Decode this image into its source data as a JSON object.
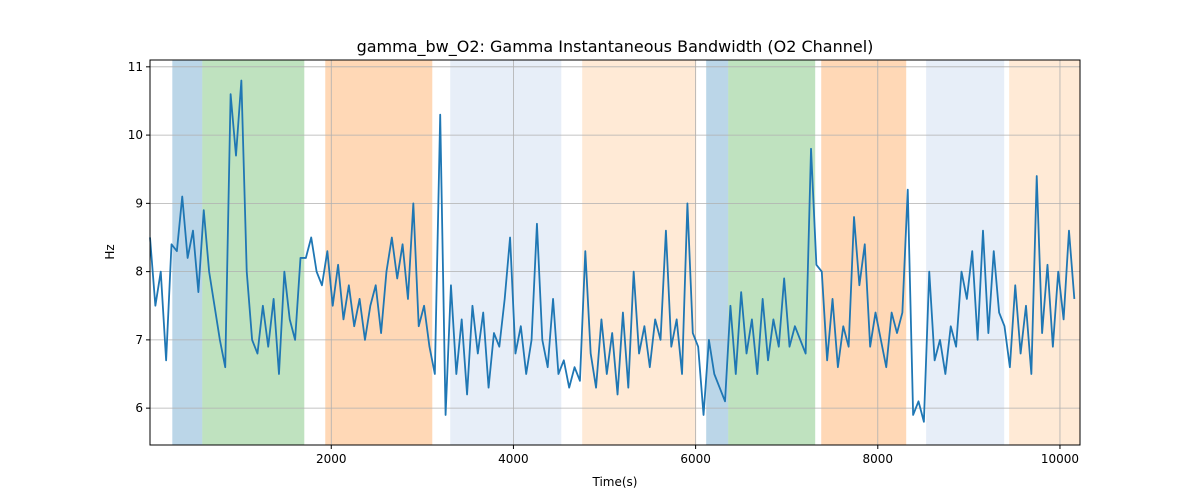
{
  "chart_data": {
    "type": "line",
    "title": "gamma_bw_O2: Gamma Instantaneous Bandwidth (O2 Channel)",
    "xlabel": "Time(s)",
    "ylabel": "Hz",
    "xlim": [
      10,
      10220
    ],
    "ylim": [
      5.46,
      11.1
    ],
    "xticks": [
      2000,
      4000,
      6000,
      8000,
      10000
    ],
    "yticks": [
      6,
      7,
      8,
      9,
      10,
      11
    ],
    "grid": true,
    "spans": [
      {
        "start": 255,
        "end": 584,
        "color": "#1f77b4"
      },
      {
        "start": 584,
        "end": 1704,
        "color": "#2ca02c"
      },
      {
        "start": 1934,
        "end": 3109,
        "color": "#ff7f0e"
      },
      {
        "start": 3306,
        "end": 4525,
        "color": "#aec7e8"
      },
      {
        "start": 4755,
        "end": 6007,
        "color": "#ffbb78"
      },
      {
        "start": 6116,
        "end": 6358,
        "color": "#1f77b4"
      },
      {
        "start": 6358,
        "end": 7313,
        "color": "#2ca02c"
      },
      {
        "start": 7379,
        "end": 8312,
        "color": "#ff7f0e"
      },
      {
        "start": 8531,
        "end": 9388,
        "color": "#aec7e8"
      },
      {
        "start": 9442,
        "end": 10220,
        "color": "#ffbb78"
      }
    ],
    "x": [
      10,
      69,
      128,
      187,
      246,
      305,
      364,
      423,
      482,
      541,
      600,
      659,
      718,
      777,
      836,
      895,
      954,
      1013,
      1072,
      1131,
      1190,
      1249,
      1308,
      1367,
      1426,
      1485,
      1544,
      1603,
      1662,
      1721,
      1780,
      1839,
      1898,
      1957,
      2016,
      2075,
      2134,
      2193,
      2252,
      2311,
      2370,
      2429,
      2488,
      2547,
      2606,
      2665,
      2724,
      2783,
      2842,
      2901,
      2960,
      3019,
      3078,
      3137,
      3196,
      3255,
      3314,
      3373,
      3432,
      3491,
      3550,
      3609,
      3668,
      3727,
      3786,
      3845,
      3904,
      3963,
      4022,
      4081,
      4140,
      4199,
      4258,
      4317,
      4376,
      4435,
      4494,
      4553,
      4612,
      4671,
      4730,
      4789,
      4848,
      4907,
      4966,
      5025,
      5084,
      5143,
      5202,
      5261,
      5320,
      5379,
      5438,
      5497,
      5556,
      5615,
      5674,
      5733,
      5792,
      5851,
      5910,
      5969,
      6028,
      6087,
      6146,
      6205,
      6264,
      6323,
      6382,
      6441,
      6500,
      6559,
      6618,
      6677,
      6736,
      6795,
      6854,
      6913,
      6972,
      7031,
      7090,
      7149,
      7208,
      7267,
      7326,
      7385,
      7444,
      7503,
      7562,
      7621,
      7680,
      7739,
      7798,
      7857,
      7916,
      7975,
      8034,
      8093,
      8152,
      8211,
      8270,
      8329,
      8388,
      8447,
      8506,
      8565,
      8624,
      8683,
      8742,
      8801,
      8860,
      8919,
      8978,
      9037,
      9096,
      9155,
      9214,
      9273,
      9332,
      9391,
      9450,
      9509,
      9568,
      9627,
      9686,
      9745,
      9804,
      9863,
      9922,
      9981,
      10040,
      10099,
      10158
    ],
    "series": [
      {
        "color": "#1f77b4",
        "values": [
          8.5,
          7.5,
          8.0,
          6.7,
          8.4,
          8.3,
          9.1,
          8.2,
          8.6,
          7.7,
          8.9,
          8.0,
          7.5,
          7.0,
          6.6,
          10.6,
          9.7,
          10.8,
          8.0,
          7.0,
          6.8,
          7.5,
          6.9,
          7.6,
          6.5,
          8.0,
          7.3,
          7.0,
          8.2,
          8.2,
          8.5,
          8.0,
          7.8,
          8.3,
          7.5,
          8.1,
          7.3,
          7.8,
          7.2,
          7.6,
          7.0,
          7.5,
          7.8,
          7.1,
          8.0,
          8.5,
          7.9,
          8.4,
          7.6,
          9.0,
          7.2,
          7.5,
          6.9,
          6.5,
          10.3,
          5.9,
          7.8,
          6.5,
          7.3,
          6.2,
          7.5,
          6.8,
          7.4,
          6.3,
          7.1,
          6.9,
          7.6,
          8.5,
          6.8,
          7.2,
          6.5,
          7.0,
          8.7,
          7.0,
          6.6,
          7.6,
          6.5,
          6.7,
          6.3,
          6.6,
          6.4,
          8.3,
          6.8,
          6.3,
          7.3,
          6.5,
          7.1,
          6.2,
          7.4,
          6.3,
          8.0,
          6.8,
          7.2,
          6.6,
          7.3,
          7.0,
          8.6,
          6.9,
          7.3,
          6.5,
          9.0,
          7.1,
          6.9,
          5.9,
          7.0,
          6.5,
          6.3,
          6.1,
          7.5,
          6.5,
          7.7,
          6.8,
          7.3,
          6.5,
          7.6,
          6.7,
          7.3,
          6.9,
          7.9,
          6.9,
          7.2,
          7.0,
          6.8,
          9.8,
          8.1,
          8.0,
          6.7,
          7.6,
          6.6,
          7.2,
          6.9,
          8.8,
          7.8,
          8.4,
          6.9,
          7.4,
          7.0,
          6.6,
          7.4,
          7.1,
          7.4,
          9.2,
          5.9,
          6.1,
          5.8,
          8.0,
          6.7,
          7.0,
          6.5,
          7.2,
          6.9,
          8.0,
          7.6,
          8.3,
          7.0,
          8.6,
          7.1,
          8.3,
          7.4,
          7.2,
          6.6,
          7.8,
          6.8,
          7.5,
          6.5,
          9.4,
          7.1,
          8.1,
          6.9,
          8.0,
          7.3,
          8.6,
          7.6
        ]
      }
    ]
  }
}
